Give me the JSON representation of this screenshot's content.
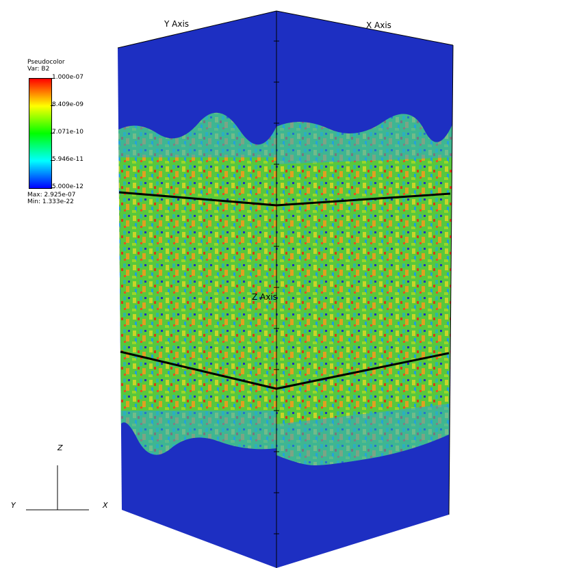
{
  "legend": {
    "title": "Pseudocolor",
    "var_label": "Var: B2",
    "ticks": [
      "1.000e-07",
      "8.409e-09",
      "7.071e-10",
      "5.946e-11",
      "5.000e-12"
    ],
    "max_label": "Max: 2.925e-07",
    "min_label": "Min: 1.333e-22"
  },
  "axes": {
    "y_axis_title": "Y Axis",
    "x_axis_title": "X Axis",
    "z_axis_title": "Z Axis"
  },
  "triad": {
    "z": "Z",
    "y": "Y",
    "x": "X"
  },
  "colors": {
    "background": "#ffffff",
    "low": "#1a2fc7",
    "mid": "#22c94a",
    "high": "#e02a10"
  }
}
